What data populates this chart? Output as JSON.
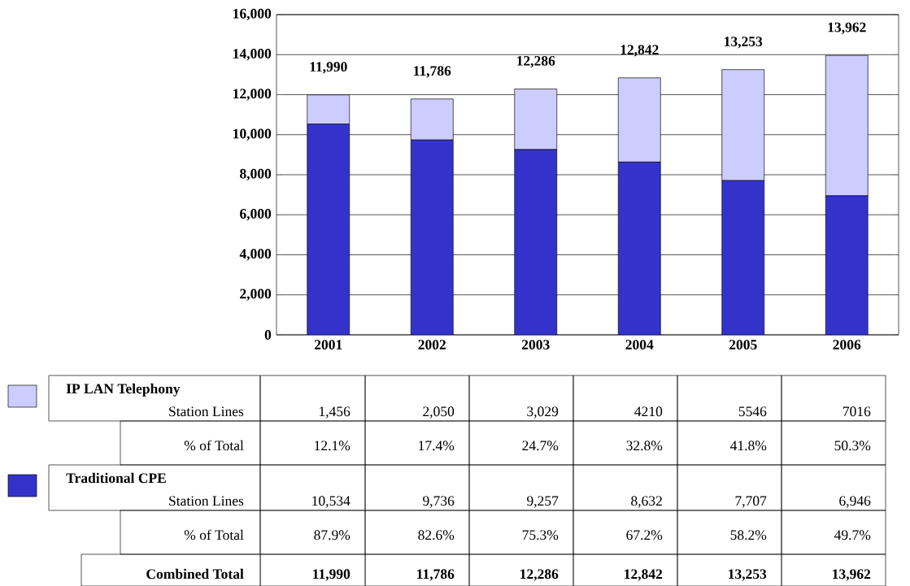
{
  "chart_data": {
    "type": "bar",
    "stacked": true,
    "categories": [
      "2001",
      "2002",
      "2003",
      "2004",
      "2005",
      "2006"
    ],
    "series": [
      {
        "name": "Traditional CPE",
        "color": "#3333cc",
        "values": [
          10534,
          9736,
          9257,
          8632,
          7707,
          6946
        ],
        "value_labels": [
          "10,534",
          "9,736",
          "9,257",
          "8,632",
          "7,707",
          "6,946"
        ]
      },
      {
        "name": "IP LAN Telephony",
        "color": "#ccccff",
        "values": [
          1456,
          2050,
          3029,
          4210,
          5546,
          7016
        ],
        "value_labels": [
          "1,456",
          "2,050",
          "3,029",
          "4210",
          "5546",
          "7016"
        ]
      }
    ],
    "totals": [
      "11,990",
      "11,786",
      "12,286",
      "12,842",
      "13,253",
      "13,962"
    ],
    "ylim": [
      0,
      16000
    ],
    "yticks": [
      0,
      {
        "value": 2000,
        "label": "2,000"
      },
      {
        "value": 4000,
        "label": "4,000"
      },
      {
        "value": 6000,
        "label": "6,000"
      },
      {
        "value": 8000,
        "label": "8,000"
      },
      {
        "value": 10000,
        "label": "10,000"
      },
      {
        "value": 12000,
        "label": "12,000"
      },
      {
        "value": 14000,
        "label": "14,000"
      },
      {
        "value": 16000,
        "label": "16,000"
      }
    ],
    "grid": "y",
    "legend": "bottom left",
    "annotations": [
      "Station Lines",
      "% of Total",
      "12.1%",
      "17.4%",
      "24.7%",
      "32.8%",
      "41.8%",
      "50.3%",
      "Station Lines",
      "% of Total",
      "87.9%",
      "82.6%",
      "75.3%",
      "67.2%",
      "58.2%",
      "49.7%",
      "Combined Total"
    ]
  }
}
